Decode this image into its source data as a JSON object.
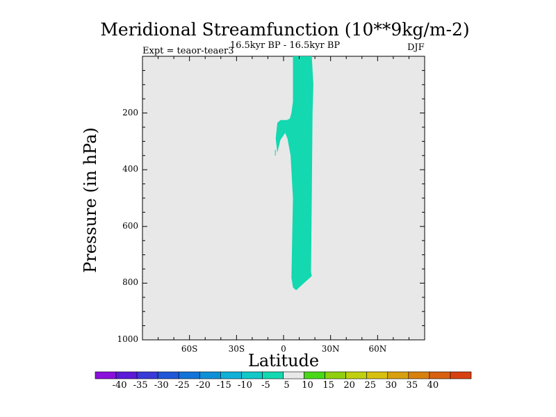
{
  "chart_data": {
    "type": "contour",
    "title": "Meridional Streamfunction (10**9kg/m-2)",
    "subtitle": "16.5kyr BP - 16.5kyr BP",
    "left_label": "Expt = teaor-teaer3",
    "right_label": "DJF",
    "xlabel": "Latitude",
    "ylabel": "Pressure (in hPa)",
    "xlim": [
      -90,
      90
    ],
    "ylim": [
      1000,
      0
    ],
    "xticks": [
      {
        "value": -60,
        "label": "60S"
      },
      {
        "value": -30,
        "label": "30S"
      },
      {
        "value": 0,
        "label": "0"
      },
      {
        "value": 30,
        "label": "30N"
      },
      {
        "value": 60,
        "label": "60N"
      }
    ],
    "yticks": [
      {
        "value": 200,
        "label": "200"
      },
      {
        "value": 400,
        "label": "400"
      },
      {
        "value": 600,
        "label": "600"
      },
      {
        "value": 800,
        "label": "800"
      },
      {
        "value": 1000,
        "label": "1000"
      }
    ],
    "background_level": "-5 to 5",
    "regions": [
      {
        "level": "-10 to -5",
        "color": "#13d8b0",
        "outline": [
          [
            6,
            0
          ],
          [
            18,
            0
          ],
          [
            19,
            100
          ],
          [
            18.5,
            200
          ],
          [
            18,
            500
          ],
          [
            17.5,
            760
          ],
          [
            18,
            775
          ],
          [
            13,
            800
          ],
          [
            10,
            815
          ],
          [
            8,
            825
          ],
          [
            6,
            815
          ],
          [
            5,
            780
          ],
          [
            6,
            500
          ],
          [
            4.5,
            350
          ],
          [
            2.5,
            290
          ],
          [
            1,
            270
          ],
          [
            -2,
            295
          ],
          [
            -4,
            340
          ],
          [
            -5,
            290
          ],
          [
            -4,
            235
          ],
          [
            -2,
            225
          ],
          [
            2,
            225
          ],
          [
            4,
            220
          ],
          [
            5,
            200
          ],
          [
            6,
            160
          ],
          [
            6,
            40
          ]
        ]
      },
      {
        "level": "-10 to -5",
        "color": "#13d8b0",
        "outline": [
          [
            -5.5,
            330
          ],
          [
            -5,
            330
          ],
          [
            -5,
            350
          ],
          [
            -5.5,
            350
          ]
        ]
      }
    ],
    "colorbar": {
      "labels": [
        "-40",
        "-35",
        "-30",
        "-25",
        "-20",
        "-15",
        "-10",
        "-5",
        "5",
        "10",
        "15",
        "20",
        "25",
        "30",
        "35",
        "40"
      ],
      "colors": [
        "#8a10dc",
        "#5c1ad8",
        "#3a3ad8",
        "#2056d8",
        "#1273d8",
        "#0e90d8",
        "#12b0d8",
        "#12c8c8",
        "#14d8b0",
        "#e8e8e8",
        "#48d818",
        "#90d010",
        "#c0d010",
        "#d8c010",
        "#d8a010",
        "#d88010",
        "#d86010",
        "#d84010"
      ]
    },
    "plot_background": "#e8e8e8"
  }
}
